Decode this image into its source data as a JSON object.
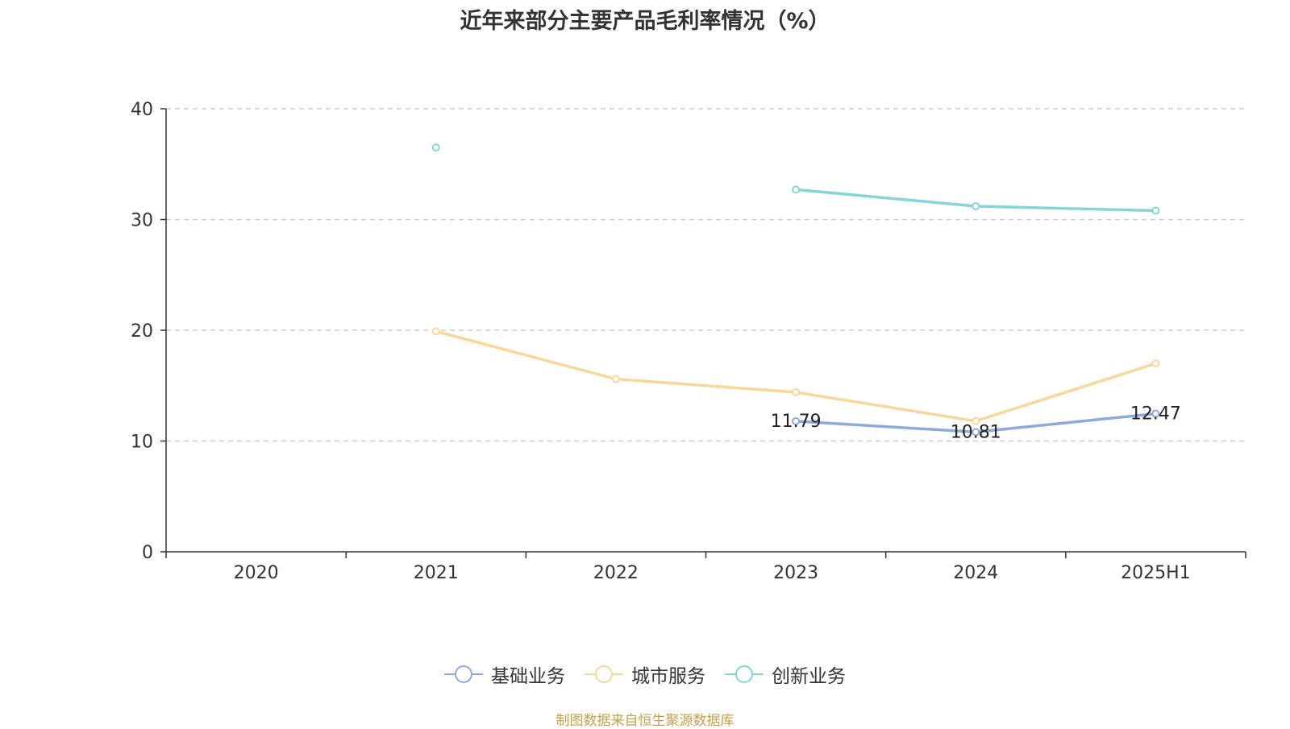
{
  "chart_data": {
    "type": "line",
    "title": "近年来部分主要产品毛利率情况（%）",
    "categories": [
      "2020",
      "2021",
      "2022",
      "2023",
      "2024",
      "2025H1"
    ],
    "ylim": [
      0,
      40
    ],
    "yticks": [
      0,
      10,
      20,
      30,
      40
    ],
    "grid": true,
    "legend_position": "bottom",
    "series": [
      {
        "name": "基础业务",
        "color": "#8eaad8",
        "values": [
          null,
          null,
          null,
          11.79,
          10.81,
          12.47
        ],
        "labels": [
          "",
          "",
          "",
          "11.79",
          "10.81",
          "12.47"
        ]
      },
      {
        "name": "城市服务",
        "color": "#f7d898",
        "values": [
          null,
          19.9,
          15.6,
          14.4,
          11.8,
          17.0
        ],
        "labels": [
          "",
          "",
          "",
          "",
          "",
          ""
        ]
      },
      {
        "name": "创新业务",
        "color": "#86d5d5",
        "values": [
          null,
          36.5,
          null,
          32.7,
          31.2,
          30.8
        ],
        "labels": [
          "",
          "",
          "",
          "",
          "",
          ""
        ]
      }
    ]
  },
  "footer": {
    "source": "制图数据来自恒生聚源数据库"
  }
}
